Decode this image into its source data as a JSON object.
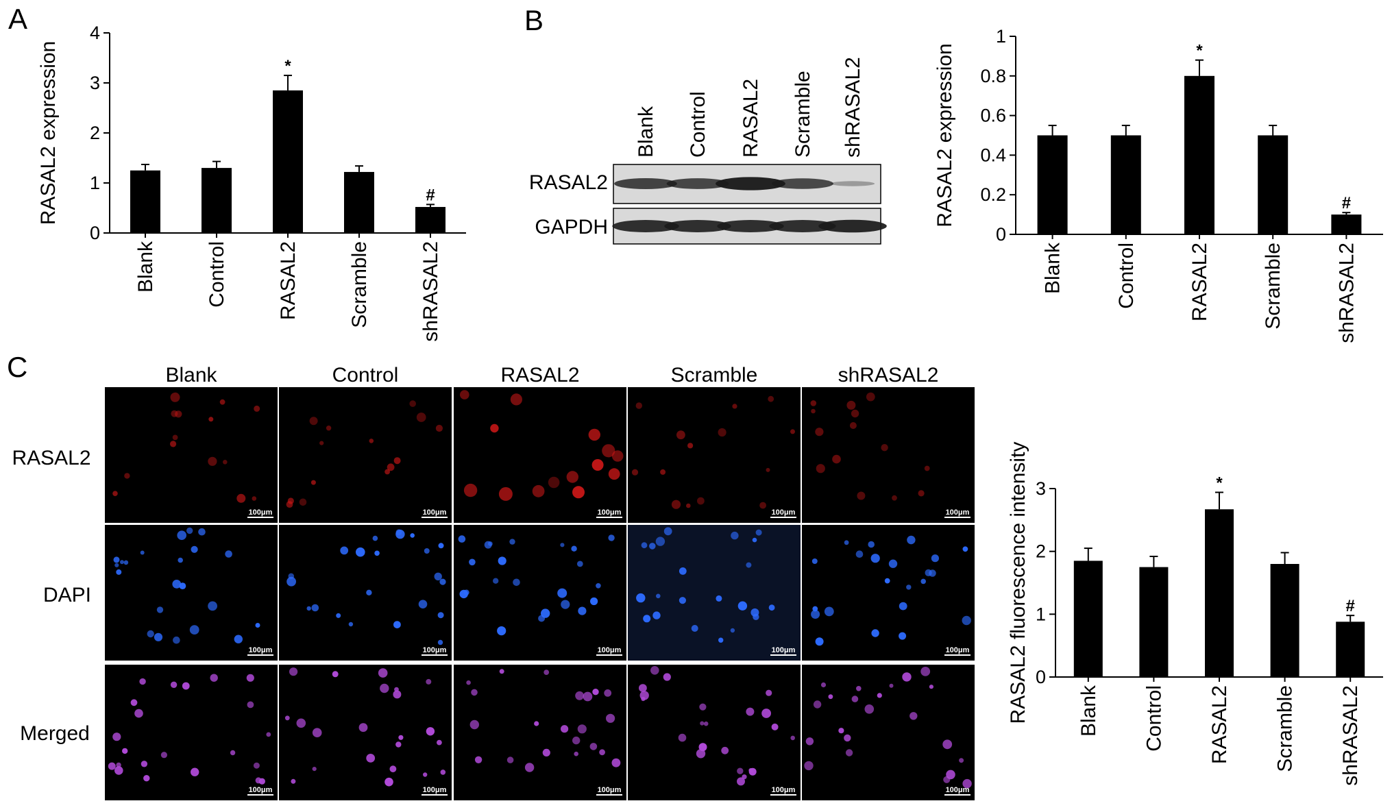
{
  "figure": {
    "panel_labels": [
      "A",
      "B",
      "C"
    ]
  },
  "chart_data": [
    {
      "id": "A",
      "type": "bar",
      "categories": [
        "Blank",
        "Control",
        "RASAL2",
        "Scramble",
        "shRASAL2"
      ],
      "values": [
        1.25,
        1.3,
        2.85,
        1.22,
        0.52
      ],
      "errors": [
        0.12,
        0.13,
        0.3,
        0.12,
        0.05
      ],
      "significance": [
        "",
        "",
        "*",
        "",
        "#"
      ],
      "ylabel": "RASAL2 expression",
      "xlabel": "",
      "title": "",
      "ylim": [
        0,
        4
      ],
      "yticks": [
        0,
        1,
        2,
        3,
        4
      ],
      "legend": "none",
      "grid": false,
      "bar_color": "#000000"
    },
    {
      "id": "B",
      "type": "bar",
      "categories": [
        "Blank",
        "Control",
        "RASAL2",
        "Scramble",
        "shRASAL2"
      ],
      "values": [
        0.5,
        0.5,
        0.8,
        0.5,
        0.1
      ],
      "errors": [
        0.05,
        0.05,
        0.08,
        0.05,
        0.01
      ],
      "significance": [
        "",
        "",
        "*",
        "",
        "#"
      ],
      "ylabel": "RASAL2 expression",
      "xlabel": "",
      "title": "",
      "ylim": [
        0,
        1
      ],
      "yticks": [
        0,
        0.2,
        0.4,
        0.6,
        0.8,
        1
      ],
      "legend": "none",
      "grid": false,
      "bar_color": "#000000"
    },
    {
      "id": "C",
      "type": "bar",
      "categories": [
        "Blank",
        "Control",
        "RASAL2",
        "Scramble",
        "shRASAL2"
      ],
      "values": [
        1.85,
        1.75,
        2.67,
        1.8,
        0.88
      ],
      "errors": [
        0.2,
        0.17,
        0.27,
        0.18,
        0.1
      ],
      "significance": [
        "",
        "",
        "*",
        "",
        "#"
      ],
      "ylabel": "RASAL2 fluorescence intensity",
      "xlabel": "",
      "title": "",
      "ylim": [
        0,
        3
      ],
      "yticks": [
        0,
        1,
        2,
        3
      ],
      "legend": "none",
      "grid": false,
      "bar_color": "#000000"
    }
  ],
  "blot": {
    "lanes": [
      "Blank",
      "Control",
      "RASAL2",
      "Scramble",
      "shRASAL2"
    ],
    "rows": [
      {
        "label": "RASAL2",
        "band_intensity": [
          0.72,
          0.7,
          0.95,
          0.68,
          0.1
        ]
      },
      {
        "label": "GAPDH",
        "band_intensity": [
          0.85,
          0.85,
          0.85,
          0.85,
          0.9
        ]
      }
    ],
    "colors": {
      "membrane": "#d9d9d9",
      "band": "#1a1a1a"
    }
  },
  "micrographs": {
    "columns": [
      "Blank",
      "Control",
      "RASAL2",
      "Scramble",
      "shRASAL2"
    ],
    "rows": [
      "RASAL2",
      "DAPI",
      "Merged"
    ],
    "scale_bar": "100μm",
    "colors": {
      "RASAL2": "#d01818",
      "DAPI": "#2d6bff",
      "Merged": "#b04ad8",
      "background": "#000000",
      "scramble_dapi_background": "#0a1226"
    }
  }
}
